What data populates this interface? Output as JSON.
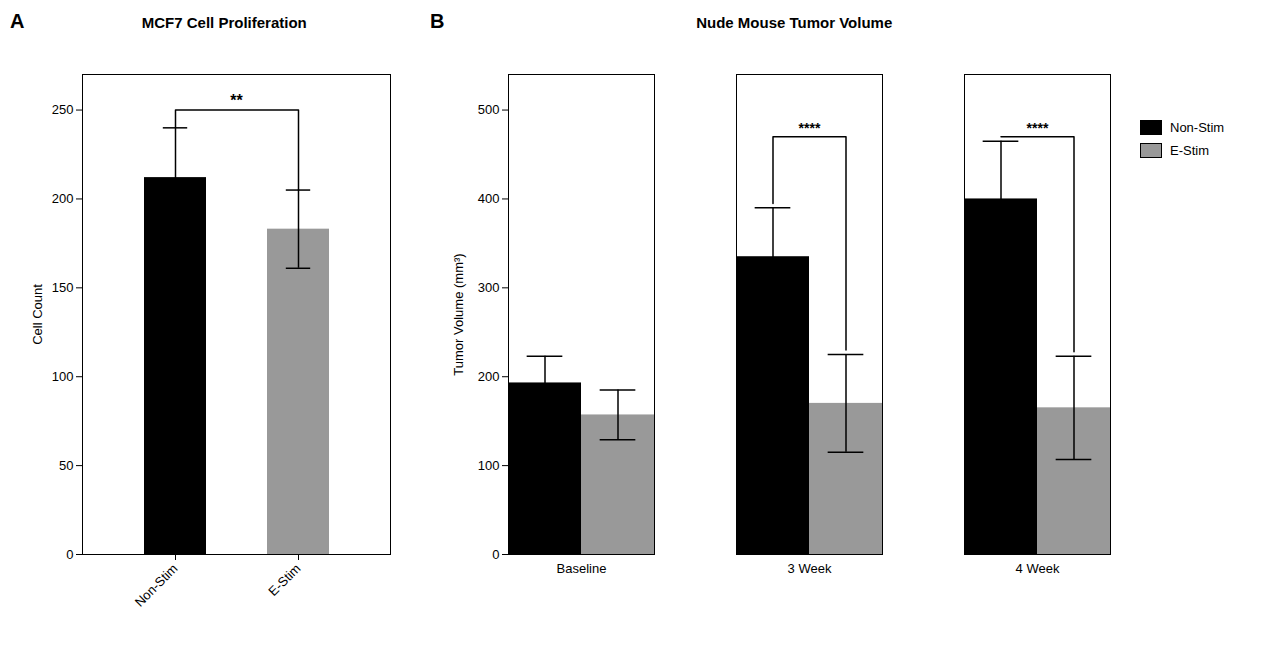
{
  "chart_data": [
    {
      "type": "bar",
      "panel_label": "A",
      "title": "MCF7 Cell Proliferation",
      "ylabel": "Cell Count",
      "categories": [
        "Non-Stim",
        "E-Stim"
      ],
      "values": [
        212,
        183
      ],
      "errors": [
        28,
        22
      ],
      "colors": [
        "#000000",
        "#999999"
      ],
      "ylim": [
        0,
        270
      ],
      "yticks": [
        0,
        50,
        100,
        150,
        200,
        250
      ],
      "grid": false,
      "brackets": [
        {
          "from": "Non-Stim",
          "to": "E-Stim",
          "top": 250,
          "left_bottom": 240,
          "right_bottom": 205,
          "label": "**"
        }
      ]
    },
    {
      "type": "bar",
      "panel_label": "B",
      "title": "Nude Mouse Tumor Volume",
      "ylabel": "Tumor Volume (mm³)",
      "categories": [
        "Baseline",
        "3 Week",
        "4 Week"
      ],
      "series": [
        {
          "name": "Non-Stim",
          "color": "#000000",
          "values": [
            193,
            335,
            400
          ],
          "errors": [
            30,
            55,
            65
          ]
        },
        {
          "name": "E-Stim",
          "color": "#999999",
          "values": [
            157,
            170,
            165
          ],
          "errors": [
            28,
            55,
            58
          ]
        }
      ],
      "ylim": [
        0,
        540
      ],
      "yticks": [
        0,
        100,
        200,
        300,
        400,
        500
      ],
      "grid": false,
      "legend": "right",
      "brackets": [
        {
          "category": "3 Week",
          "from": "Non-Stim",
          "to": "E-Stim",
          "top": 470,
          "left_bottom": 395,
          "right_bottom": 230,
          "label": "****"
        },
        {
          "category": "4 Week",
          "from": "Non-Stim",
          "to": "E-Stim",
          "top": 470,
          "left_bottom": 470,
          "right_bottom": 228,
          "label": "****"
        }
      ]
    }
  ]
}
